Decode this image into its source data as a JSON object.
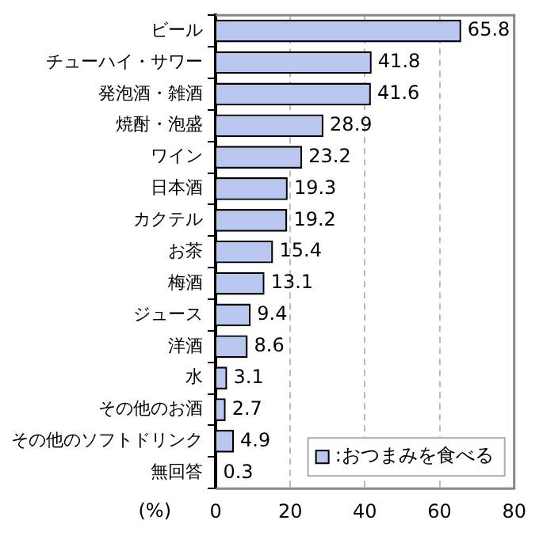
{
  "chart_data": {
    "type": "bar",
    "orientation": "horizontal",
    "xlabel": "(%)",
    "categories": [
      "ビール",
      "チューハイ・サワー",
      "発泡酒・雑酒",
      "焼酎・泡盛",
      "ワイン",
      "日本酒",
      "カクテル",
      "お茶",
      "梅酒",
      "ジュース",
      "洋酒",
      "水",
      "その他のお酒",
      "その他のソフトドリンク",
      "無回答"
    ],
    "series": [
      {
        "name": ":おつまみを食べる",
        "color": "#b8c6f0",
        "values": [
          65.8,
          41.8,
          41.6,
          28.9,
          23.2,
          19.3,
          19.2,
          15.4,
          13.1,
          9.4,
          8.6,
          3.1,
          2.7,
          4.9,
          0.3
        ]
      }
    ],
    "xlim": [
      0,
      80
    ],
    "xticks": [
      0,
      20,
      40,
      60,
      80
    ],
    "grid": "x",
    "data_labels": true,
    "legend": "bottom right"
  }
}
